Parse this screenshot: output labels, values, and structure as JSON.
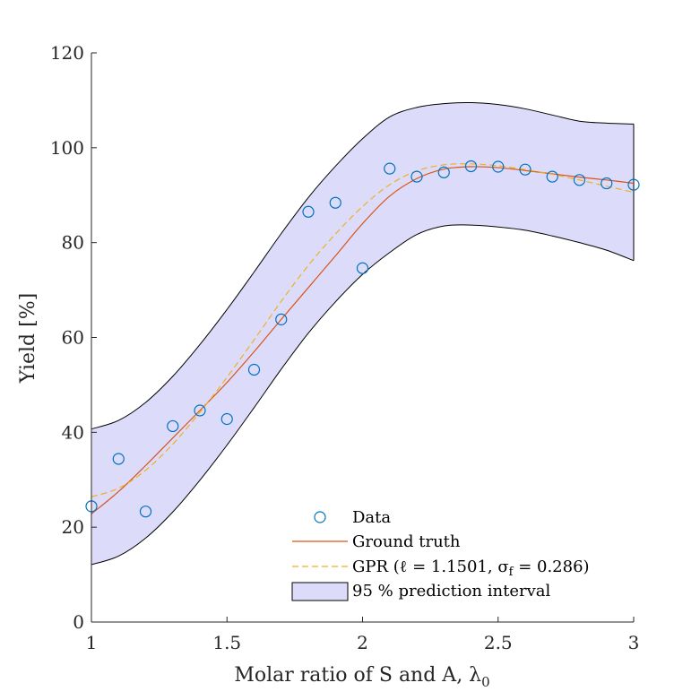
{
  "chart_data": {
    "type": "scatter",
    "xlabel": "Molar ratio of S and A, λ",
    "xlabel_subscript": "0",
    "ylabel": "Yield [%]",
    "xlim": [
      1,
      3
    ],
    "ylim": [
      0,
      120
    ],
    "xticks": [
      1,
      1.5,
      2,
      2.5,
      3
    ],
    "xtick_labels": [
      "1",
      "1.5",
      "2",
      "2.5",
      "3"
    ],
    "yticks": [
      0,
      20,
      40,
      60,
      80,
      100,
      120
    ],
    "ytick_labels": [
      "0",
      "20",
      "40",
      "60",
      "80",
      "100",
      "120"
    ],
    "grid": false,
    "legend_position": "bottom-center",
    "legend": {
      "data": "Data",
      "truth": "Ground truth",
      "gpr": "GPR (ℓ = 1.1501, σ",
      "gpr_sub": "f",
      "gpr_tail": " = 0.286)",
      "band": "95 % prediction interval"
    },
    "colors": {
      "data": "#0072BD",
      "truth": "#D95319",
      "gpr": "#EDB120",
      "band_fill": "#DCDCFA",
      "band_edge": "#000000",
      "axes": "#262626"
    },
    "series": [
      {
        "name": "Data",
        "kind": "scatter",
        "x": [
          1.0,
          1.1,
          1.2,
          1.3,
          1.4,
          1.5,
          1.6,
          1.7,
          1.8,
          1.9,
          2.0,
          2.1,
          2.2,
          2.3,
          2.4,
          2.5,
          2.6,
          2.7,
          2.8,
          2.9,
          3.0
        ],
        "y": [
          24.4,
          34.4,
          23.3,
          41.3,
          44.6,
          42.8,
          53.2,
          63.8,
          86.5,
          88.4,
          74.6,
          95.6,
          93.9,
          94.8,
          96.1,
          96.0,
          95.4,
          93.9,
          93.2,
          92.5,
          92.2
        ]
      },
      {
        "name": "Ground truth",
        "kind": "line",
        "x": [
          1.0,
          1.1,
          1.2,
          1.3,
          1.4,
          1.5,
          1.6,
          1.7,
          1.8,
          1.9,
          2.0,
          2.1,
          2.2,
          2.3,
          2.4,
          2.5,
          2.6,
          2.7,
          2.8,
          2.9,
          3.0
        ],
        "y": [
          22.8,
          27.5,
          33.0,
          38.8,
          44.6,
          50.5,
          57.0,
          63.8,
          70.5,
          77.2,
          84.0,
          89.8,
          93.5,
          95.5,
          96.0,
          95.8,
          95.2,
          94.5,
          93.8,
          93.2,
          92.5
        ]
      },
      {
        "name": "GPR",
        "kind": "line",
        "x": [
          1.0,
          1.1,
          1.2,
          1.3,
          1.4,
          1.5,
          1.6,
          1.7,
          1.8,
          1.9,
          2.0,
          2.1,
          2.2,
          2.3,
          2.4,
          2.5,
          2.6,
          2.7,
          2.8,
          2.9,
          3.0
        ],
        "y": [
          26.4,
          28.2,
          32.0,
          37.5,
          44.2,
          51.6,
          59.5,
          67.6,
          75.2,
          81.8,
          87.6,
          92.2,
          95.1,
          96.4,
          96.6,
          96.2,
          95.4,
          94.4,
          93.2,
          91.9,
          90.6
        ]
      },
      {
        "name": "95 % prediction interval",
        "kind": "band",
        "x": [
          1.0,
          1.1,
          1.2,
          1.3,
          1.4,
          1.5,
          1.6,
          1.7,
          1.8,
          1.9,
          2.0,
          2.1,
          2.2,
          2.3,
          2.4,
          2.5,
          2.6,
          2.7,
          2.8,
          2.9,
          3.0
        ],
        "upper": [
          40.7,
          42.5,
          46.3,
          51.8,
          58.5,
          65.9,
          73.8,
          81.9,
          89.5,
          96.1,
          101.9,
          106.5,
          108.5,
          109.3,
          109.5,
          109.1,
          108.2,
          106.9,
          105.6,
          105.2,
          105.0
        ],
        "lower": [
          12.1,
          13.9,
          17.7,
          23.2,
          29.9,
          37.3,
          45.2,
          53.3,
          60.9,
          67.5,
          73.3,
          77.9,
          81.7,
          83.5,
          83.7,
          83.3,
          82.6,
          81.4,
          80.0,
          78.4,
          76.2
        ]
      }
    ]
  }
}
